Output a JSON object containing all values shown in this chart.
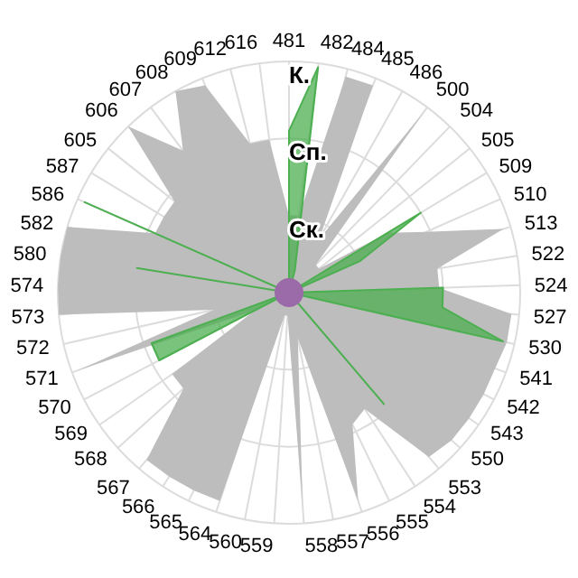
{
  "chart_data": {
    "type": "radar",
    "categories": [
      "481",
      "482",
      "484",
      "485",
      "486",
      "500",
      "504",
      "505",
      "509",
      "510",
      "513",
      "522",
      "524",
      "527",
      "530",
      "541",
      "542",
      "543",
      "550",
      "553",
      "554",
      "555",
      "556",
      "557",
      "558",
      "559",
      "560",
      "564",
      "565",
      "566",
      "567",
      "568",
      "569",
      "570",
      "571",
      "572",
      "573",
      "574",
      "580",
      "582",
      "586",
      "587",
      "605",
      "606",
      "607",
      "608",
      "609",
      "612",
      "616"
    ],
    "series": [
      {
        "color": "#bdbdbd",
        "values": [
          1.0,
          1.0,
          2.9,
          2.9,
          0.8,
          2.9,
          0.5,
          0.5,
          1.5,
          1.95,
          2.9,
          1.95,
          1.95,
          2.9,
          2.9,
          2.85,
          2.85,
          2.85,
          2.85,
          2.8,
          1.8,
          1.9,
          2.85,
          0.6,
          2.75,
          0.3,
          0.3,
          2.85,
          2.85,
          2.85,
          2.85,
          1.85,
          1.85,
          0.5,
          2.9,
          1.0,
          3.0,
          3.0,
          3.0,
          3.0,
          1.9,
          1.9,
          1.9,
          3.0,
          2.3,
          3.0,
          2.9,
          2.0,
          2.0
        ]
      },
      {
        "color": "#4caf50",
        "values": [
          2.1,
          2.95,
          0.3,
          0,
          0,
          0,
          0,
          0,
          2.0,
          1.0,
          0,
          0,
          2.0,
          2.0,
          2.85,
          0,
          0,
          0,
          0,
          1.9,
          0,
          0,
          0,
          0,
          0,
          0,
          0,
          0,
          0,
          0,
          0,
          0,
          0,
          1.9,
          1.9,
          0,
          0,
          0,
          2.0,
          0,
          2.9,
          0,
          0,
          0,
          0,
          0,
          0,
          0,
          0
        ]
      }
    ],
    "ylim": [
      0,
      3
    ],
    "yticks": [
      {
        "value": 1,
        "label": "Ск."
      },
      {
        "value": 2,
        "label": "Сп."
      },
      {
        "value": 3,
        "label": "К."
      }
    ],
    "grid": true
  }
}
